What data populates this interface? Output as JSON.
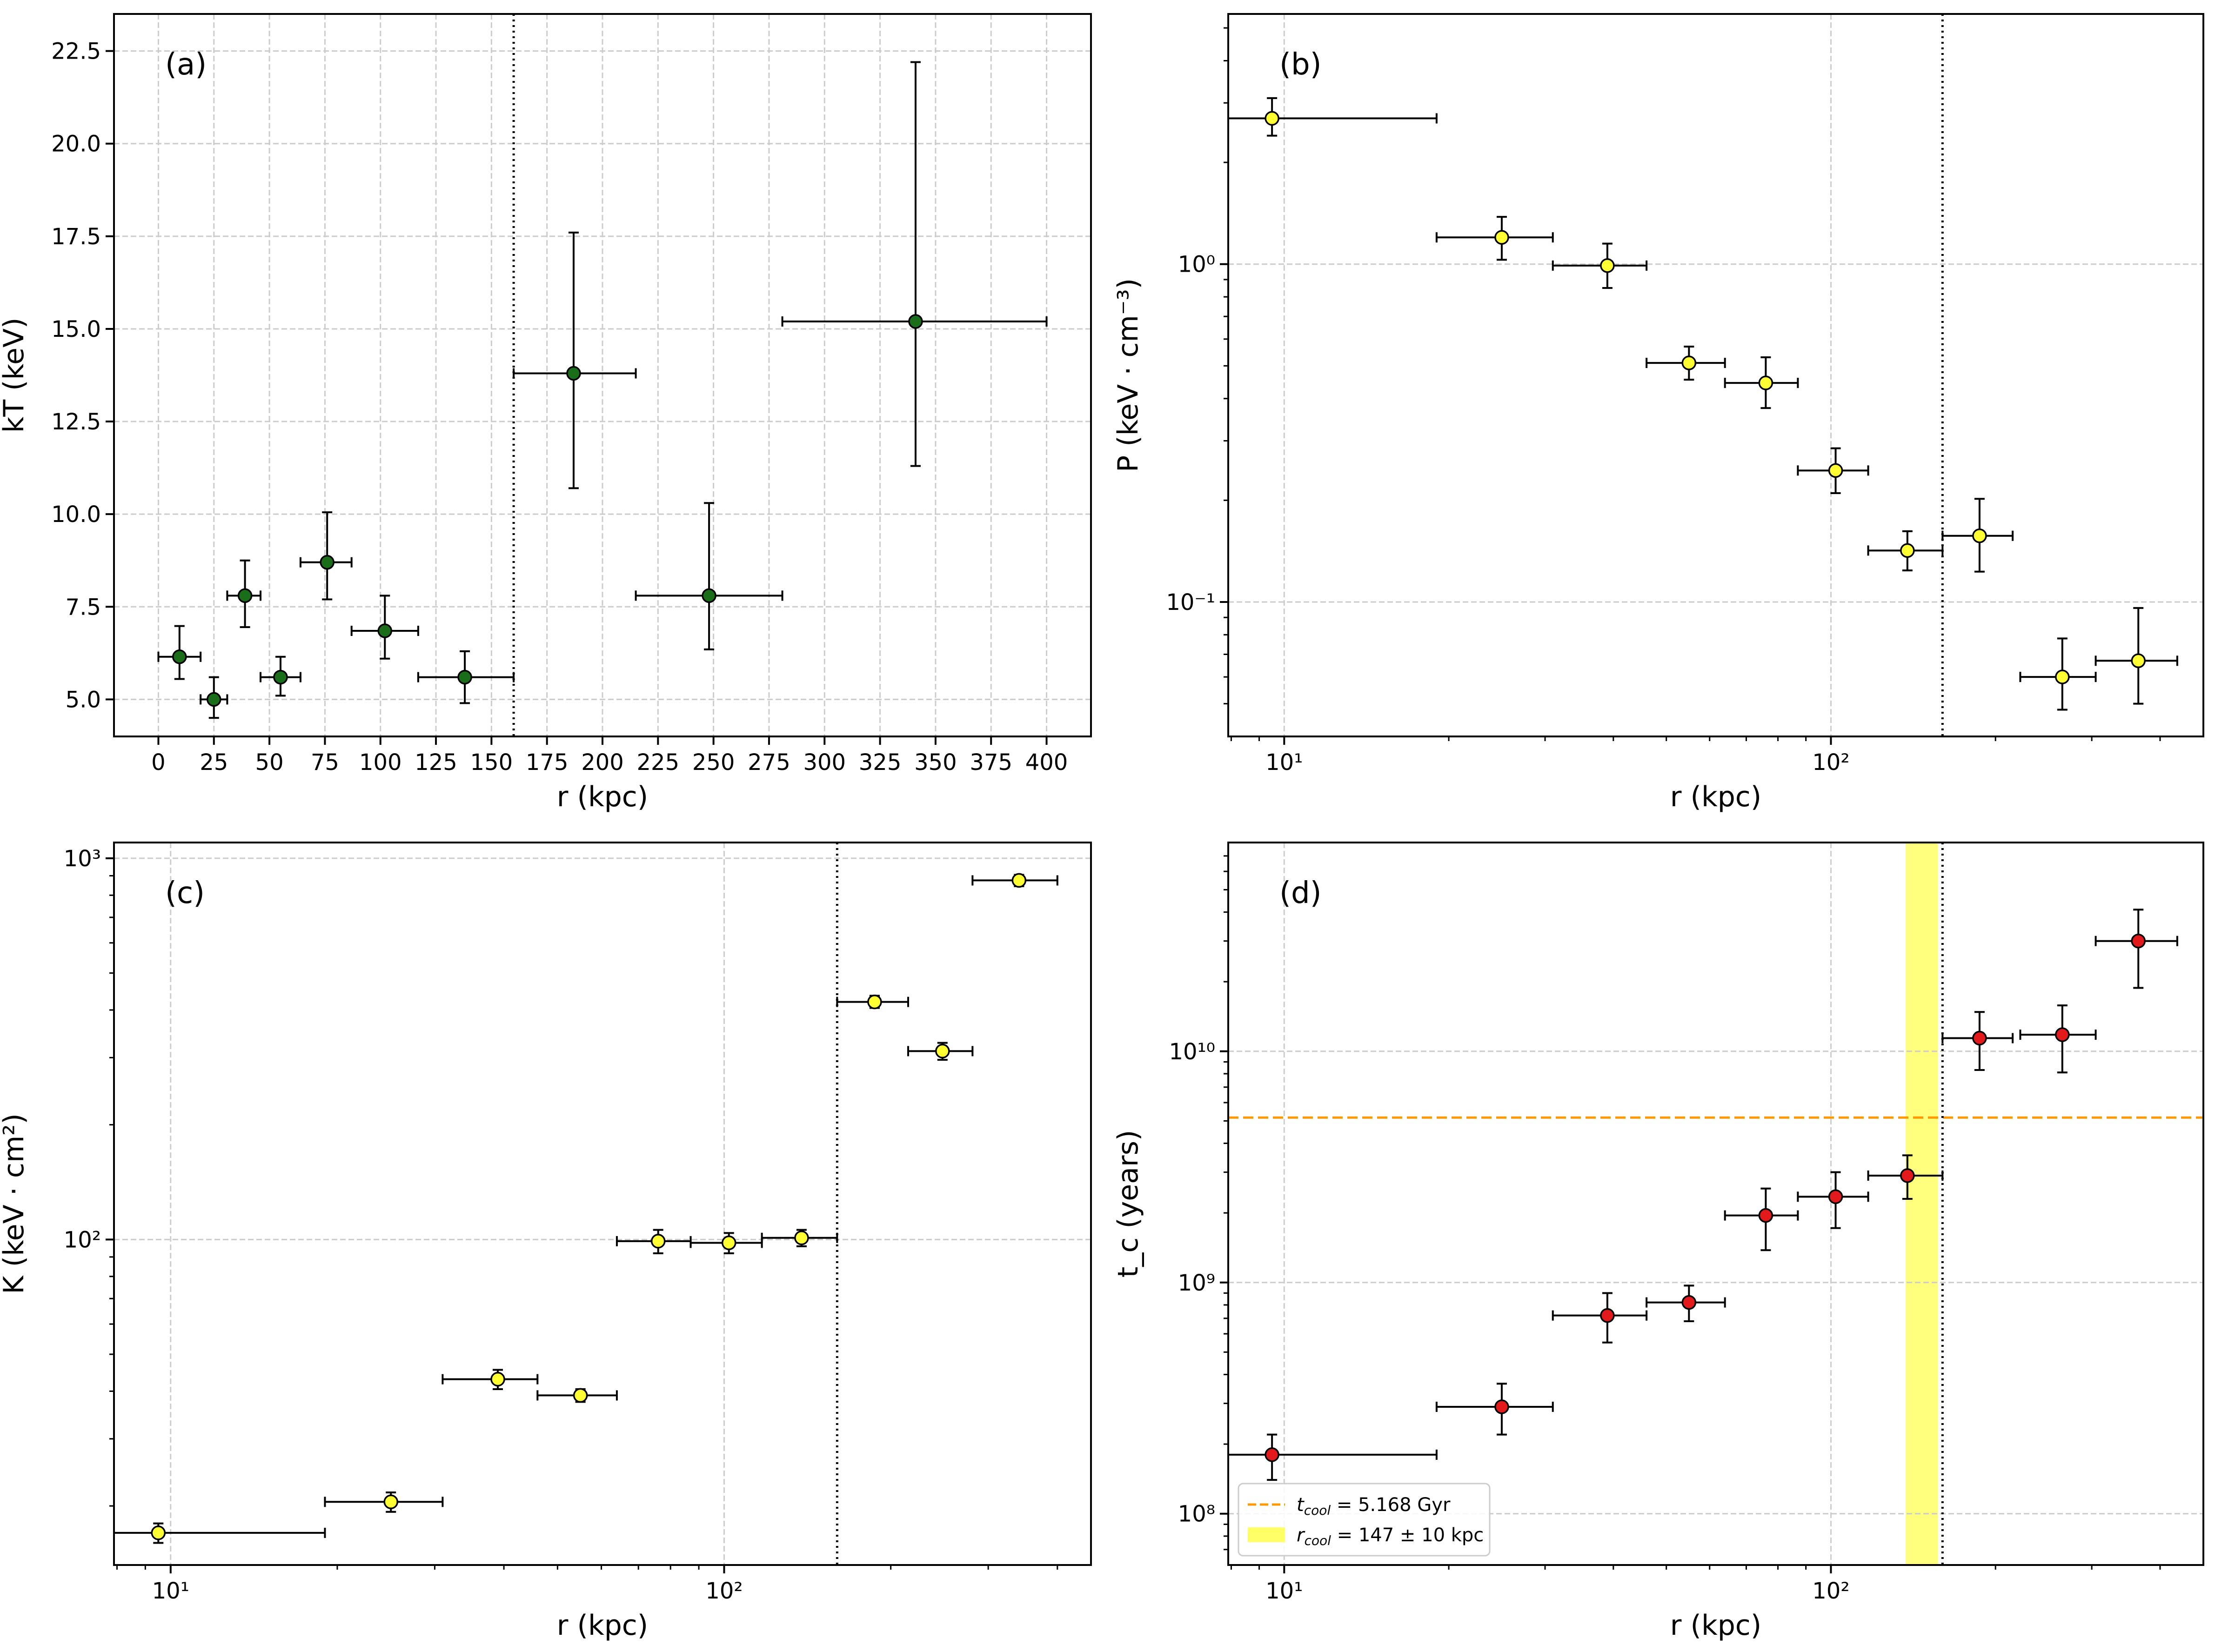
{
  "chart_data": [
    {
      "id": "a",
      "type": "scatter",
      "panel_label": "(a)",
      "xscale": "linear",
      "yscale": "linear",
      "xlabel": "r (kpc)",
      "ylabel": "kT (keV)",
      "xlim": [
        -20,
        420
      ],
      "ylim": [
        4.0,
        23.5
      ],
      "xticks": [
        0,
        25,
        50,
        75,
        100,
        125,
        150,
        175,
        200,
        225,
        250,
        275,
        300,
        325,
        350,
        375,
        400
      ],
      "xtick_labels": [
        "0",
        "25",
        "50",
        "75",
        "100",
        "125",
        "150",
        "175",
        "200",
        "225",
        "250",
        "275",
        "300",
        "325",
        "350",
        "375",
        "400"
      ],
      "yticks": [
        5.0,
        7.5,
        10.0,
        12.5,
        15.0,
        17.5,
        20.0,
        22.5
      ],
      "ytick_labels": [
        "5.0",
        "7.5",
        "10.0",
        "12.5",
        "15.0",
        "17.5",
        "20.0",
        "22.5"
      ],
      "grid": true,
      "marker_color": "#1a6e1a",
      "vline_x": 160,
      "points": [
        {
          "x": 9.5,
          "xlo": 0,
          "xhi": 19,
          "y": 6.15,
          "ylo": 5.55,
          "yhi": 6.98
        },
        {
          "x": 25,
          "xlo": 19,
          "xhi": 31,
          "y": 5.0,
          "ylo": 4.5,
          "yhi": 5.6
        },
        {
          "x": 39,
          "xlo": 31,
          "xhi": 46,
          "y": 7.8,
          "ylo": 6.95,
          "yhi": 8.75
        },
        {
          "x": 55,
          "xlo": 46,
          "xhi": 64,
          "y": 5.6,
          "ylo": 5.1,
          "yhi": 6.15
        },
        {
          "x": 76,
          "xlo": 64,
          "xhi": 87,
          "y": 8.7,
          "ylo": 7.7,
          "yhi": 10.05
        },
        {
          "x": 102,
          "xlo": 87,
          "xhi": 117,
          "y": 6.85,
          "ylo": 6.1,
          "yhi": 7.8
        },
        {
          "x": 138,
          "xlo": 117,
          "xhi": 160,
          "y": 5.6,
          "ylo": 4.9,
          "yhi": 6.3
        },
        {
          "x": 187,
          "xlo": 160,
          "xhi": 215,
          "y": 13.8,
          "ylo": 10.7,
          "yhi": 17.6
        },
        {
          "x": 248,
          "xlo": 215,
          "xhi": 281,
          "y": 7.8,
          "ylo": 6.35,
          "yhi": 10.3
        },
        {
          "x": 341,
          "xlo": 281,
          "xhi": 400,
          "y": 15.2,
          "ylo": 11.3,
          "yhi": 22.2
        }
      ]
    },
    {
      "id": "b",
      "type": "scatter",
      "panel_label": "(b)",
      "xscale": "log",
      "yscale": "log",
      "xlabel": "r (kpc)",
      "ylabel": "P (keV · cm⁻³)",
      "xlim": [
        7.9,
        480
      ],
      "ylim": [
        0.04,
        5.5
      ],
      "xticks": [
        10,
        100
      ],
      "xtick_labels": [
        "10¹",
        "10²"
      ],
      "yticks": [
        0.1,
        1
      ],
      "ytick_labels": [
        "10⁻¹",
        "10⁰"
      ],
      "grid": true,
      "marker_color": "#ffff33",
      "vline_x": 160,
      "points": [
        {
          "x": 9.5,
          "xlo": 7.9,
          "xhi": 19,
          "y": 2.7,
          "ylo": 2.4,
          "yhi": 3.1
        },
        {
          "x": 25,
          "xlo": 19,
          "xhi": 31,
          "y": 1.2,
          "ylo": 1.03,
          "yhi": 1.38
        },
        {
          "x": 39,
          "xlo": 31,
          "xhi": 46,
          "y": 0.99,
          "ylo": 0.85,
          "yhi": 1.15
        },
        {
          "x": 55,
          "xlo": 46,
          "xhi": 64,
          "y": 0.51,
          "ylo": 0.455,
          "yhi": 0.57
        },
        {
          "x": 76,
          "xlo": 64,
          "xhi": 87,
          "y": 0.445,
          "ylo": 0.375,
          "yhi": 0.53
        },
        {
          "x": 102,
          "xlo": 87,
          "xhi": 117,
          "y": 0.245,
          "ylo": 0.21,
          "yhi": 0.285
        },
        {
          "x": 138,
          "xlo": 117,
          "xhi": 160,
          "y": 0.142,
          "ylo": 0.124,
          "yhi": 0.162
        },
        {
          "x": 187,
          "xlo": 160,
          "xhi": 215,
          "y": 0.157,
          "ylo": 0.123,
          "yhi": 0.202
        },
        {
          "x": 265,
          "xlo": 222,
          "xhi": 305,
          "y": 0.06,
          "ylo": 0.048,
          "yhi": 0.078
        },
        {
          "x": 365,
          "xlo": 305,
          "xhi": 430,
          "y": 0.067,
          "ylo": 0.05,
          "yhi": 0.096
        }
      ]
    },
    {
      "id": "c",
      "type": "scatter",
      "panel_label": "(c)",
      "xscale": "log",
      "yscale": "log",
      "xlabel": "r (kpc)",
      "ylabel": "K (keV · cm²)",
      "xlim": [
        7.9,
        460
      ],
      "ylim": [
        14,
        1100
      ],
      "xticks": [
        10,
        100
      ],
      "xtick_labels": [
        "10¹",
        "10²"
      ],
      "yticks": [
        100,
        1000
      ],
      "ytick_labels": [
        "10²",
        "10³"
      ],
      "grid": true,
      "marker_color": "#ffff33",
      "vline_x": 160,
      "points": [
        {
          "x": 9.5,
          "xlo": 7.9,
          "xhi": 19,
          "y": 17,
          "ylo": 16,
          "yhi": 18
        },
        {
          "x": 25,
          "xlo": 19,
          "xhi": 31,
          "y": 20.5,
          "ylo": 19.3,
          "yhi": 21.7
        },
        {
          "x": 39,
          "xlo": 31,
          "xhi": 46,
          "y": 43,
          "ylo": 40.5,
          "yhi": 45.5
        },
        {
          "x": 55,
          "xlo": 46,
          "xhi": 64,
          "y": 39,
          "ylo": 37.5,
          "yhi": 40.5
        },
        {
          "x": 76,
          "xlo": 64,
          "xhi": 87,
          "y": 99,
          "ylo": 92,
          "yhi": 106
        },
        {
          "x": 102,
          "xlo": 87,
          "xhi": 117,
          "y": 98,
          "ylo": 92,
          "yhi": 104
        },
        {
          "x": 138,
          "xlo": 117,
          "xhi": 160,
          "y": 101,
          "ylo": 96,
          "yhi": 106
        },
        {
          "x": 187,
          "xlo": 160,
          "xhi": 215,
          "y": 420,
          "ylo": 405,
          "yhi": 436
        },
        {
          "x": 248,
          "xlo": 215,
          "xhi": 281,
          "y": 312,
          "ylo": 296,
          "yhi": 328
        },
        {
          "x": 341,
          "xlo": 281,
          "xhi": 400,
          "y": 875,
          "ylo": 845,
          "yhi": 905
        }
      ]
    },
    {
      "id": "d",
      "type": "scatter",
      "panel_label": "(d)",
      "xscale": "log",
      "yscale": "log",
      "xlabel": "r (kpc)",
      "ylabel": "t_c (years)",
      "xlim": [
        7.9,
        480
      ],
      "ylim": [
        60000000,
        80000000000
      ],
      "xticks": [
        10,
        100
      ],
      "xtick_labels": [
        "10¹",
        "10²"
      ],
      "yticks": [
        100000000,
        1000000000,
        10000000000
      ],
      "ytick_labels": [
        "10⁸",
        "10⁹",
        "10¹⁰"
      ],
      "grid": true,
      "marker_color": "#e31a1c",
      "vline_x": 160,
      "hline_y": 5168000000,
      "hline_color": "#ff9900",
      "shade_x": [
        137,
        157
      ],
      "shade_color": "#ffff66",
      "legend": [
        {
          "label_prefix": "t",
          "label_sub": "cool",
          "label_rest": " = 5.168 Gyr",
          "kind": "dashed-line"
        },
        {
          "label_prefix": "r",
          "label_sub": "cool",
          "label_rest": " = 147 ± 10 kpc",
          "kind": "patch"
        }
      ],
      "legend_position": "lower-left",
      "points": [
        {
          "x": 9.5,
          "xlo": 7.9,
          "xhi": 19,
          "y": 180000000,
          "ylo": 140000000,
          "yhi": 220000000
        },
        {
          "x": 25,
          "xlo": 19,
          "xhi": 31,
          "y": 290000000,
          "ylo": 220000000,
          "yhi": 365000000
        },
        {
          "x": 39,
          "xlo": 31,
          "xhi": 46,
          "y": 720000000,
          "ylo": 550000000,
          "yhi": 900000000
        },
        {
          "x": 55,
          "xlo": 46,
          "xhi": 64,
          "y": 820000000,
          "ylo": 680000000,
          "yhi": 970000000
        },
        {
          "x": 76,
          "xlo": 64,
          "xhi": 87,
          "y": 1950000000,
          "ylo": 1380000000,
          "yhi": 2550000000
        },
        {
          "x": 102,
          "xlo": 87,
          "xhi": 117,
          "y": 2350000000,
          "ylo": 1720000000,
          "yhi": 3000000000
        },
        {
          "x": 138,
          "xlo": 117,
          "xhi": 160,
          "y": 2900000000,
          "ylo": 2300000000,
          "yhi": 3550000000
        },
        {
          "x": 187,
          "xlo": 160,
          "xhi": 215,
          "y": 11400000000,
          "ylo": 8300000000,
          "yhi": 14800000000
        },
        {
          "x": 265,
          "xlo": 222,
          "xhi": 305,
          "y": 11800000000,
          "ylo": 8100000000,
          "yhi": 15800000000
        },
        {
          "x": 365,
          "xlo": 305,
          "xhi": 430,
          "y": 30000000000,
          "ylo": 18800000000,
          "yhi": 41000000000
        }
      ]
    }
  ]
}
